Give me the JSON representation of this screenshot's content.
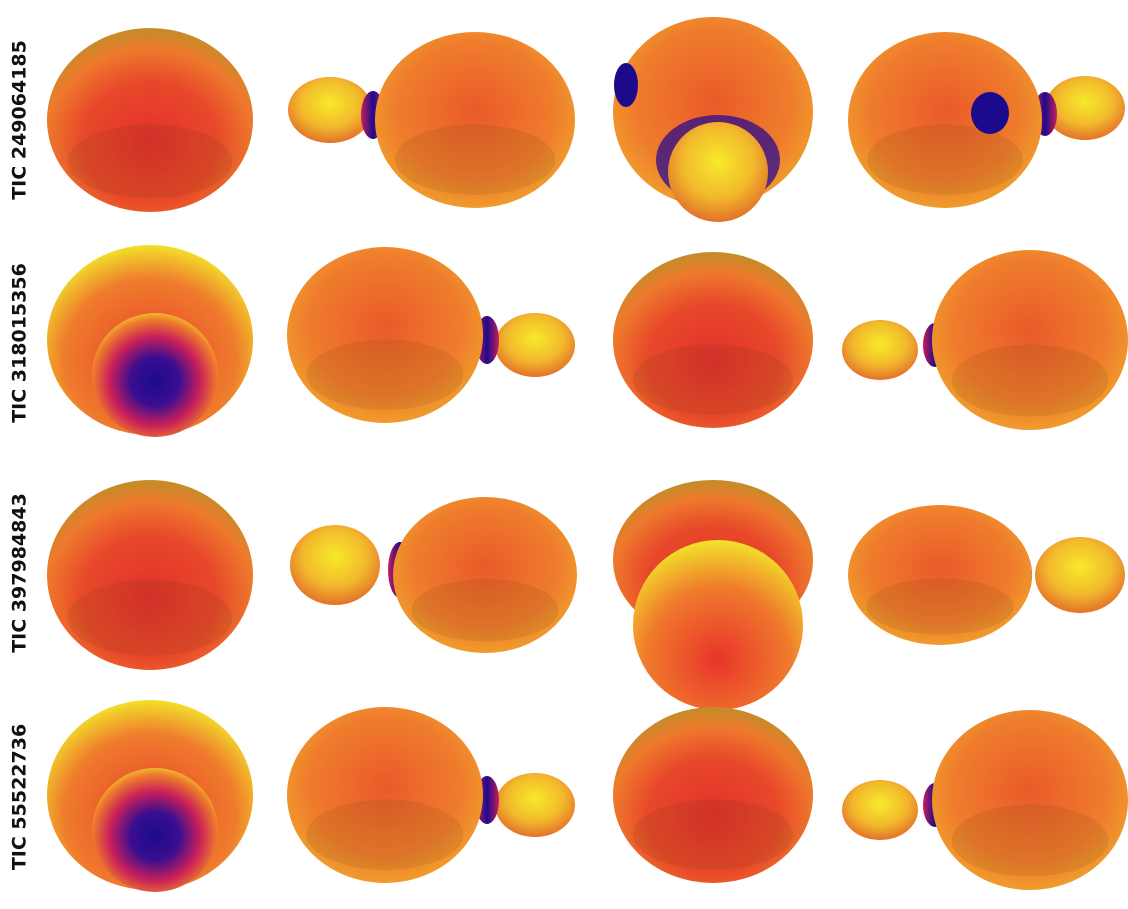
{
  "rows": [
    {
      "label": "TIC 249064185"
    },
    {
      "label": "TIC 318015356"
    },
    {
      "label": "TIC 397984843"
    },
    {
      "label": "TIC 55522736"
    }
  ]
}
